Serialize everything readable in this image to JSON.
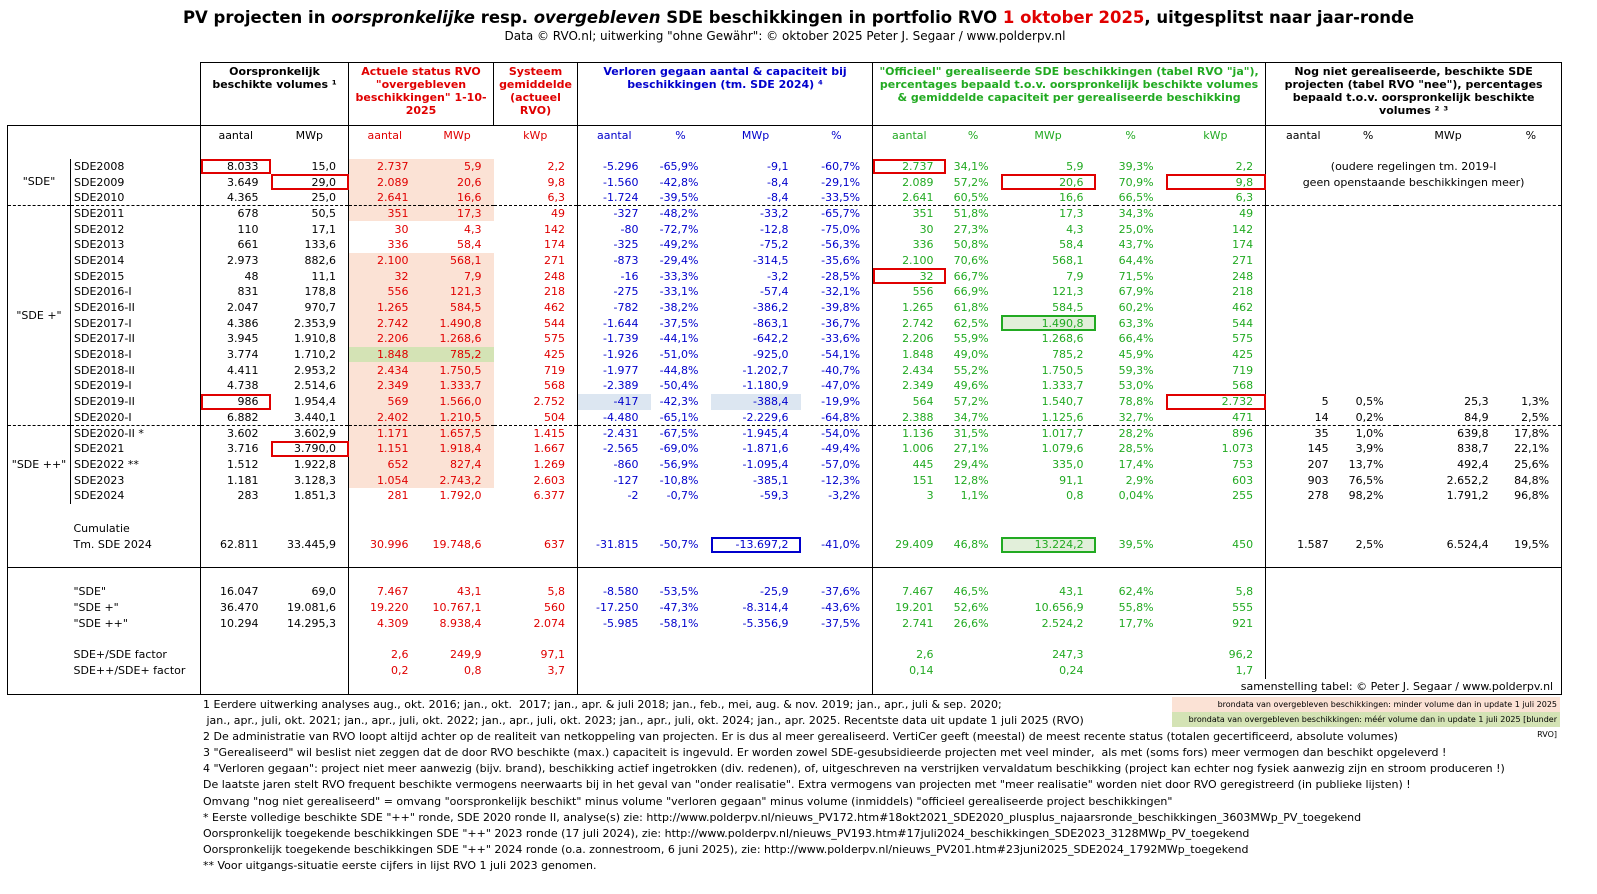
{
  "header": {
    "title": [
      "PV projecten in ",
      "oorspronkelijke",
      " resp. ",
      "overgebleven",
      " SDE beschikkingen in portfolio RVO ",
      "1 oktober 2025",
      ", uitgesplitst naar jaar-ronde"
    ],
    "subtitle": "Data © RVO.nl; uitwerking \"ohne Gewähr\": © oktober 2025 Peter J. Segaar / www.polderpv.nl"
  },
  "table": {
    "group_headers": [
      "Oorspronkelijk beschikte volumes ¹",
      "Actuele  status  RVO \"overgebleven beschikkingen\" 1-10-2025",
      "Systeem gemiddelde (actueel RVO)",
      "Verloren gegaan aantal & capaciteit bij beschikkingen (tm. SDE 2024) ⁴",
      "\"Officieel\" gerealiseerde SDE beschikkingen (tabel RVO \"ja\"), percentages bepaald t.o.v. oorspronkelijk beschikte volumes & gemiddelde capaciteit per gerealiseerde beschikking",
      "Nog niet gerealiseerde, beschikte SDE projecten (tabel RVO \"nee\"), percentages bepaald t.o.v. oorspronkelijk beschikte volumes ² ³"
    ],
    "sub_headers": [
      "aantal",
      "MWp",
      "aantal",
      "MWp",
      "kWp",
      "aantal",
      "%",
      "MWp",
      "%",
      "aantal",
      "%",
      "MWp",
      "%",
      "kWp",
      "aantal",
      "%",
      "MWp",
      "%"
    ],
    "note_old": [
      "(oudere regelingen tm. 2019-I",
      "geen openstaande beschikkingen meer)"
    ],
    "sections": [
      {
        "label": "\"SDE\"",
        "rows": [
          {
            "name": "SDE2008",
            "cells": [
              "8.033",
              "15,0",
              "2.737",
              "5,9",
              "2,2",
              "-5.296",
              "-65,9%",
              "-9,1",
              "-60,7%",
              "2.737",
              "34,1%",
              "5,9",
              "39,3%",
              "2,2"
            ]
          },
          {
            "name": "SDE2009",
            "cells": [
              "3.649",
              "29,0",
              "2.089",
              "20,6",
              "9,8",
              "-1.560",
              "-42,8%",
              "-8,4",
              "-29,1%",
              "2.089",
              "57,2%",
              "20,6",
              "70,9%",
              "9,8"
            ]
          },
          {
            "name": "SDE2010",
            "cells": [
              "4.365",
              "25,0",
              "2.641",
              "16,6",
              "6,3",
              "-1.724",
              "-39,5%",
              "-8,4",
              "-33,5%",
              "2.641",
              "60,5%",
              "16,6",
              "66,5%",
              "6,3"
            ]
          }
        ]
      },
      {
        "label": "\"SDE +\"",
        "rows": [
          {
            "name": "SDE2011",
            "cells": [
              "678",
              "50,5",
              "351",
              "17,3",
              "49",
              "-327",
              "-48,2%",
              "-33,2",
              "-65,7%",
              "351",
              "51,8%",
              "17,3",
              "34,3%",
              "49"
            ]
          },
          {
            "name": "SDE2012",
            "cells": [
              "110",
              "17,1",
              "30",
              "4,3",
              "142",
              "-80",
              "-72,7%",
              "-12,8",
              "-75,0%",
              "30",
              "27,3%",
              "4,3",
              "25,0%",
              "142"
            ]
          },
          {
            "name": "SDE2013",
            "cells": [
              "661",
              "133,6",
              "336",
              "58,4",
              "174",
              "-325",
              "-49,2%",
              "-75,2",
              "-56,3%",
              "336",
              "50,8%",
              "58,4",
              "43,7%",
              "174"
            ]
          },
          {
            "name": "SDE2014",
            "cells": [
              "2.973",
              "882,6",
              "2.100",
              "568,1",
              "271",
              "-873",
              "-29,4%",
              "-314,5",
              "-35,6%",
              "2.100",
              "70,6%",
              "568,1",
              "64,4%",
              "271"
            ]
          },
          {
            "name": "SDE2015",
            "cells": [
              "48",
              "11,1",
              "32",
              "7,9",
              "248",
              "-16",
              "-33,3%",
              "-3,2",
              "-28,5%",
              "32",
              "66,7%",
              "7,9",
              "71,5%",
              "248"
            ]
          },
          {
            "name": "SDE2016-I",
            "cells": [
              "831",
              "178,8",
              "556",
              "121,3",
              "218",
              "-275",
              "-33,1%",
              "-57,4",
              "-32,1%",
              "556",
              "66,9%",
              "121,3",
              "67,9%",
              "218"
            ]
          },
          {
            "name": "SDE2016-II",
            "cells": [
              "2.047",
              "970,7",
              "1.265",
              "584,5",
              "462",
              "-782",
              "-38,2%",
              "-386,2",
              "-39,8%",
              "1.265",
              "61,8%",
              "584,5",
              "60,2%",
              "462"
            ]
          },
          {
            "name": "SDE2017-I",
            "cells": [
              "4.386",
              "2.353,9",
              "2.742",
              "1.490,8",
              "544",
              "-1.644",
              "-37,5%",
              "-863,1",
              "-36,7%",
              "2.742",
              "62,5%",
              "1.490,8",
              "63,3%",
              "544"
            ]
          },
          {
            "name": "SDE2017-II",
            "cells": [
              "3.945",
              "1.910,8",
              "2.206",
              "1.268,6",
              "575",
              "-1.739",
              "-44,1%",
              "-642,2",
              "-33,6%",
              "2.206",
              "55,9%",
              "1.268,6",
              "66,4%",
              "575"
            ]
          },
          {
            "name": "SDE2018-I",
            "cells": [
              "3.774",
              "1.710,2",
              "1.848",
              "785,2",
              "425",
              "-1.926",
              "-51,0%",
              "-925,0",
              "-54,1%",
              "1.848",
              "49,0%",
              "785,2",
              "45,9%",
              "425"
            ]
          },
          {
            "name": "SDE2018-II",
            "cells": [
              "4.411",
              "2.953,2",
              "2.434",
              "1.750,5",
              "719",
              "-1.977",
              "-44,8%",
              "-1.202,7",
              "-40,7%",
              "2.434",
              "55,2%",
              "1.750,5",
              "59,3%",
              "719"
            ]
          },
          {
            "name": "SDE2019-I",
            "cells": [
              "4.738",
              "2.514,6",
              "2.349",
              "1.333,7",
              "568",
              "-2.389",
              "-50,4%",
              "-1.180,9",
              "-47,0%",
              "2.349",
              "49,6%",
              "1.333,7",
              "53,0%",
              "568"
            ]
          },
          {
            "name": "SDE2019-II",
            "cells": [
              "986",
              "1.954,4",
              "569",
              "1.566,0",
              "2.752",
              "-417",
              "-42,3%",
              "-388,4",
              "-19,9%",
              "564",
              "57,2%",
              "1.540,7",
              "78,8%",
              "2.732",
              "5",
              "0,5%",
              "25,3",
              "1,3%"
            ]
          },
          {
            "name": "SDE2020-I",
            "cells": [
              "6.882",
              "3.440,1",
              "2.402",
              "1.210,5",
              "504",
              "-4.480",
              "-65,1%",
              "-2.229,6",
              "-64,8%",
              "2.388",
              "34,7%",
              "1.125,6",
              "32,7%",
              "471",
              "14",
              "0,2%",
              "84,9",
              "2,5%"
            ]
          }
        ]
      },
      {
        "label": "\"SDE ++\"",
        "rows": [
          {
            "name": "SDE2020-II *",
            "cells": [
              "3.602",
              "3.602,9",
              "1.171",
              "1.657,5",
              "1.415",
              "-2.431",
              "-67,5%",
              "-1.945,4",
              "-54,0%",
              "1.136",
              "31,5%",
              "1.017,7",
              "28,2%",
              "896",
              "35",
              "1,0%",
              "639,8",
              "17,8%"
            ]
          },
          {
            "name": "SDE2021",
            "cells": [
              "3.716",
              "3.790,0",
              "1.151",
              "1.918,4",
              "1.667",
              "-2.565",
              "-69,0%",
              "-1.871,6",
              "-49,4%",
              "1.006",
              "27,1%",
              "1.079,6",
              "28,5%",
              "1.073",
              "145",
              "3,9%",
              "838,7",
              "22,1%"
            ]
          },
          {
            "name": "SDE2022 **",
            "cells": [
              "1.512",
              "1.922,8",
              "652",
              "827,4",
              "1.269",
              "-860",
              "-56,9%",
              "-1.095,4",
              "-57,0%",
              "445",
              "29,4%",
              "335,0",
              "17,4%",
              "753",
              "207",
              "13,7%",
              "492,4",
              "25,6%"
            ]
          },
          {
            "name": "SDE2023",
            "cells": [
              "1.181",
              "3.128,3",
              "1.054",
              "2.743,2",
              "2.603",
              "-127",
              "-10,8%",
              "-385,1",
              "-12,3%",
              "151",
              "12,8%",
              "91,1",
              "2,9%",
              "603",
              "903",
              "76,5%",
              "2.652,2",
              "84,8%"
            ]
          },
          {
            "name": "SDE2024",
            "cells": [
              "283",
              "1.851,3",
              "281",
              "1.792,0",
              "6.377",
              "-2",
              "-0,7%",
              "-59,3",
              "-3,2%",
              "3",
              "1,1%",
              "0,8",
              "0,04%",
              "255",
              "278",
              "98,2%",
              "1.791,2",
              "96,8%"
            ]
          }
        ]
      }
    ],
    "cumulative": {
      "label": "Cumulatie",
      "name": "Tm. SDE 2024",
      "cells": [
        "62.811",
        "33.445,9",
        "30.996",
        "19.748,6",
        "637",
        "-31.815",
        "-50,7%",
        "-13.697,2",
        "-41,0%",
        "29.409",
        "46,8%",
        "13.224,2",
        "39,5%",
        "450",
        "1.587",
        "2,5%",
        "6.524,4",
        "19,5%"
      ]
    },
    "summary": [
      {
        "name": "\"SDE\"",
        "cells": [
          "16.047",
          "69,0",
          "7.467",
          "43,1",
          "5,8",
          "-8.580",
          "-53,5%",
          "-25,9",
          "-37,6%",
          "7.467",
          "46,5%",
          "43,1",
          "62,4%",
          "5,8"
        ]
      },
      {
        "name": "\"SDE +\"",
        "cells": [
          "36.470",
          "19.081,6",
          "19.220",
          "10.767,1",
          "560",
          "-17.250",
          "-47,3%",
          "-8.314,4",
          "-43,6%",
          "19.201",
          "52,6%",
          "10.656,9",
          "55,8%",
          "555"
        ]
      },
      {
        "name": "\"SDE ++\"",
        "cells": [
          "10.294",
          "14.295,3",
          "4.309",
          "8.938,4",
          "2.074",
          "-5.985",
          "-58,1%",
          "-5.356,9",
          "-37,5%",
          "2.741",
          "26,6%",
          "2.524,2",
          "17,7%",
          "921"
        ]
      }
    ],
    "factors": [
      {
        "name": "SDE+/SDE factor",
        "cells": [
          null,
          null,
          "2,6",
          "249,9",
          "97,1",
          null,
          null,
          null,
          null,
          "2,6",
          null,
          "247,3",
          null,
          "96,2"
        ]
      },
      {
        "name": "SDE++/SDE+ factor",
        "cells": [
          null,
          null,
          "0,2",
          "0,8",
          "3,7",
          null,
          null,
          null,
          null,
          "0,14",
          null,
          "0,24",
          null,
          "1,7"
        ]
      }
    ],
    "credit": "samenstelling tabel: © Peter J. Segaar / www.polderpv.nl"
  },
  "legend": [
    "brondata van overgebleven beschikkingen: minder volume dan in update 1 juli 2025",
    "brondata van overgebleven beschikkingen: méér volume dan in update 1 juli 2025 [blunder RVO]"
  ],
  "footnotes": [
    "1 Eerdere uitwerking analyses aug., okt. 2016; jan., okt.  2017; jan., apr. & juli 2018; jan., feb., mei, aug. & nov. 2019; jan., apr., juli & sep. 2020;",
    " jan., apr., juli, okt. 2021; jan., apr., juli, okt. 2022; jan., apr., juli, okt. 2023; jan., apr., juli, okt. 2024; jan., apr. 2025. Recentste data uit update 1 juli 2025 (RVO)",
    "2 De administratie van RVO loopt altijd achter op de realiteit van netkoppeling van projecten. Er is dus al meer gerealiseerd. VertiCer geeft (meestal) de meest recente status (totalen gecertificeerd, absolute volumes)",
    "3 \"Gerealiseerd\" wil beslist niet zeggen dat de door RVO beschikte (max.) capaciteit is ingevuld. Er worden zowel SDE-gesubsidieerde projecten met veel minder,  als met (soms fors) meer vermogen dan beschikt opgeleverd !",
    "4 \"Verloren gegaan\": project niet meer aanwezig (bijv. brand), beschikking actief ingetrokken (div. redenen), of, uitgeschreven na verstrijken vervaldatum beschikking (project kan echter nog fysiek aanwezig zijn en stroom produceren !)",
    "De laatste jaren stelt RVO frequent beschikte vermogens neerwaarts bij in het geval van \"onder realisatie\". Extra vermogens van projecten met \"meer realisatie\" worden niet door RVO geregistreerd (in publieke lijsten) !",
    "Omvang \"nog niet gerealiseerd\" = omvang \"oorspronkelijk beschikt\" minus volume \"verloren gegaan\" minus volume (inmiddels) \"officieel gerealiseerde project beschikkingen\"",
    "* Eerste volledige beschikte SDE \"++\" ronde, SDE 2020 ronde II, analyse(s) zie: http://www.polderpv.nl/nieuws_PV172.htm#18okt2021_SDE2020_plusplus_najaarsronde_beschikkingen_3603MWp_PV_toegekend",
    "Oorspronkelijk toegekende beschikkingen SDE \"++\" 2023 ronde (17 juli 2024), zie: http://www.polderpv.nl/nieuws_PV193.htm#17juli2024_beschikkingen_SDE2023_3128MWp_PV_toegekend",
    "Oorspronkelijk toegekende beschikkingen SDE \"++\" 2024 ronde (o.a. zonnestroom, 6 juni 2025), zie: http://www.polderpv.nl/nieuws_PV201.htm#23juni2025_SDE2024_1792MWp_toegekend",
    "** Voor uitgangs-situatie eerste cijfers in lijst RVO 1 juli 2023 genomen."
  ]
}
